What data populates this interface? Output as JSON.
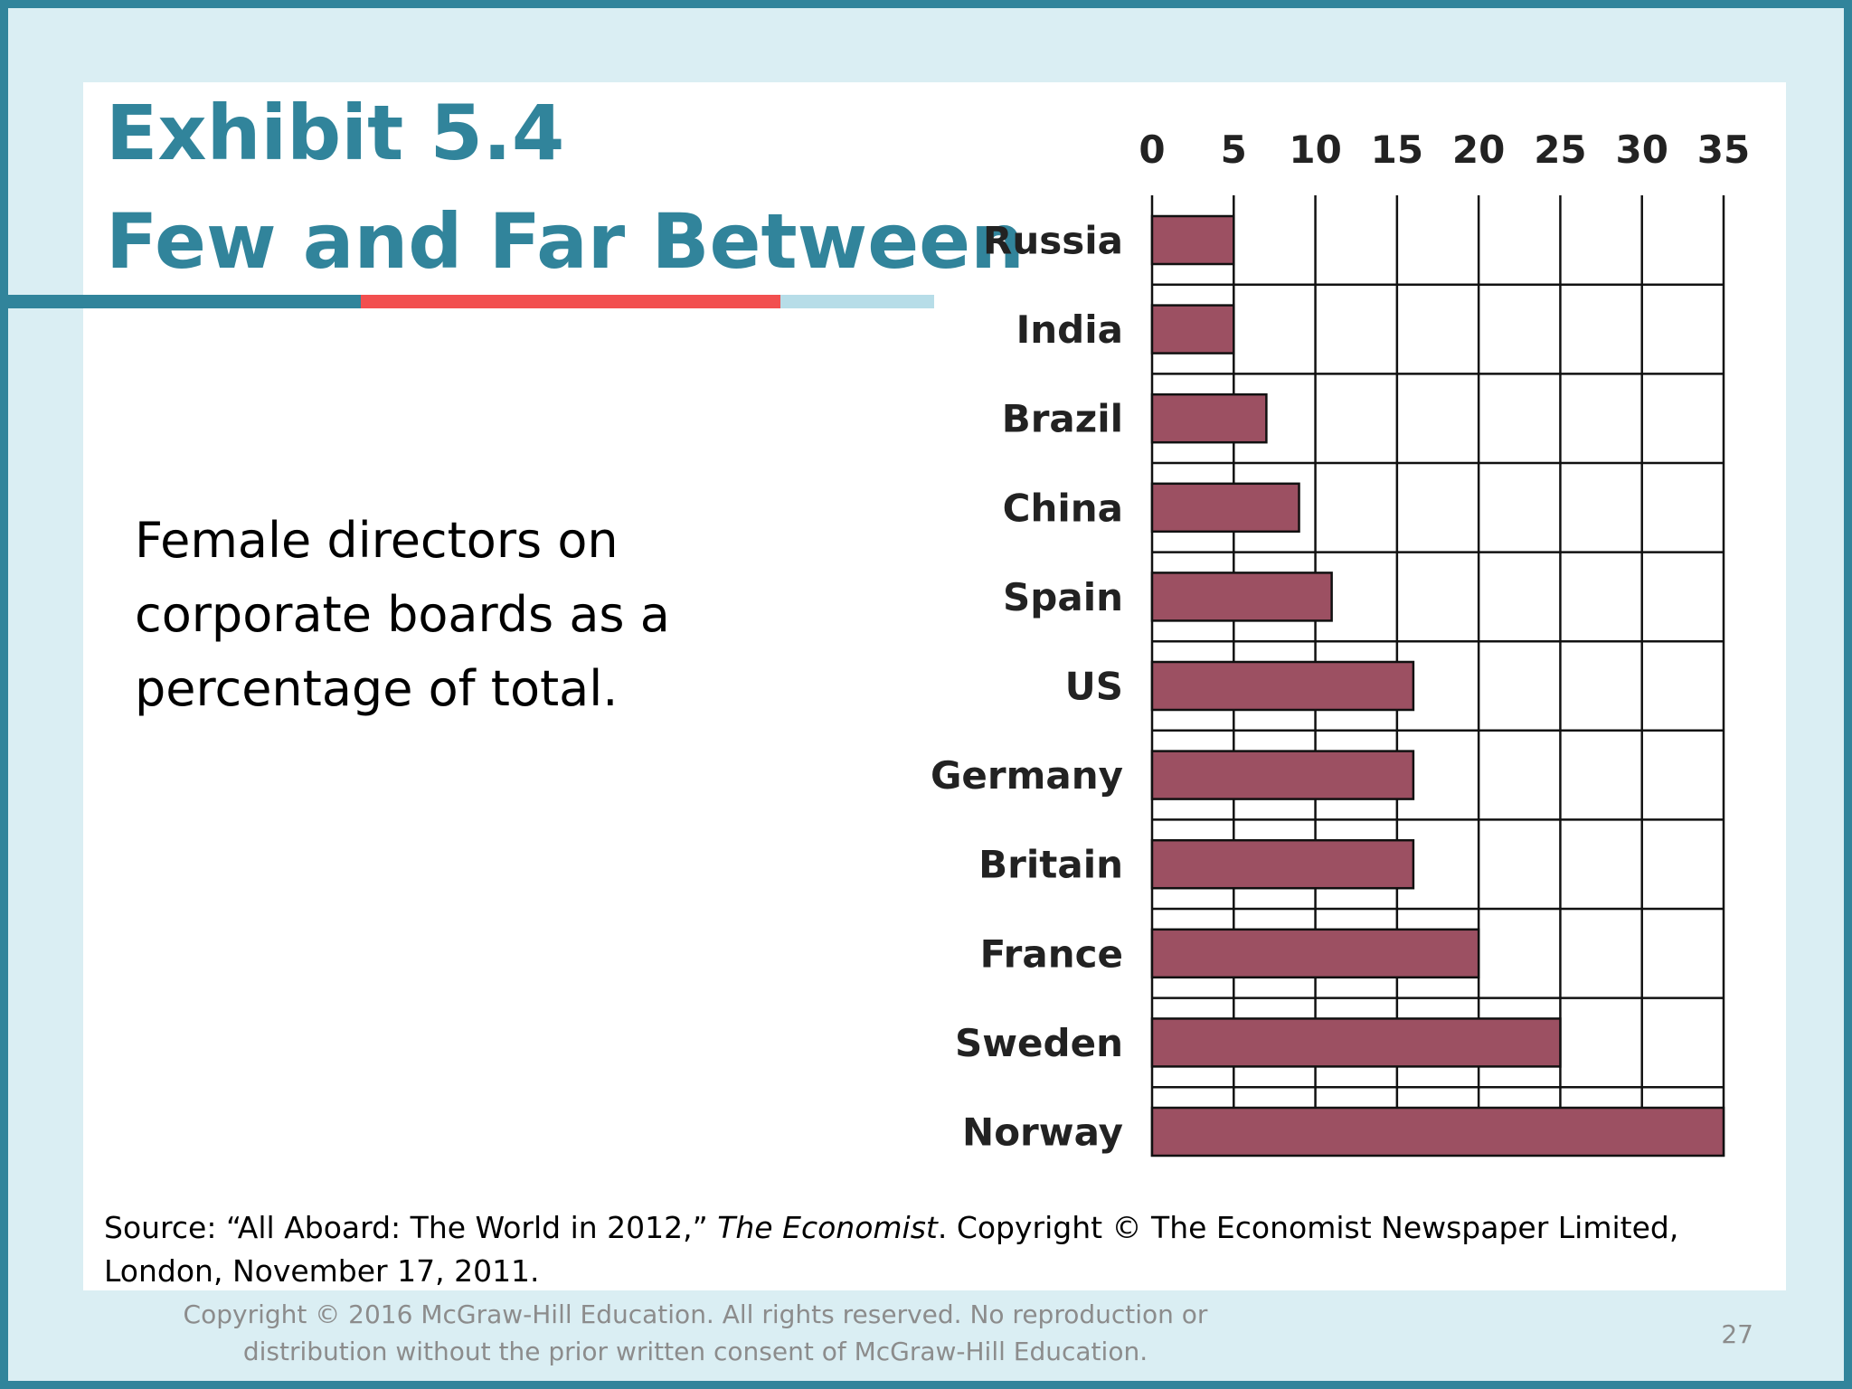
{
  "slide": {
    "title_line1": "Exhibit 5.4",
    "title_line2": "Few and Far Between",
    "description": "Female directors on corporate boards as a percentage of total.",
    "source_prefix": "Source: “All Aboard: The World in 2012,” ",
    "source_publication": "The Economist",
    "source_rest": ". Copyright © The Economist Newspaper Limited, London, November 17, 2011.",
    "copyright": "Copyright © 2016 McGraw-Hill Education. All rights reserved. No reproduction or distribution without the prior written consent of McGraw-Hill Education.",
    "page_number": "27",
    "colors": {
      "accent": "#31849b",
      "accent_red": "#f24f4f",
      "accent_light": "#b7dde8",
      "bar_fill": "#9c5062"
    }
  },
  "chart_data": {
    "type": "bar",
    "orientation": "horizontal",
    "categories": [
      "Russia",
      "India",
      "Brazil",
      "China",
      "Spain",
      "US",
      "Germany",
      "Britain",
      "France",
      "Sweden",
      "Norway"
    ],
    "values": [
      5,
      5,
      7,
      9,
      11,
      16,
      16,
      16,
      20,
      25,
      35
    ],
    "xlim": [
      0,
      35
    ],
    "xticks": [
      0,
      5,
      10,
      15,
      20,
      25,
      30,
      35
    ],
    "tick_labels": [
      "0",
      "5",
      "10",
      "15",
      "20",
      "25",
      "30",
      "35"
    ],
    "axis_position": "top",
    "grid": true
  }
}
